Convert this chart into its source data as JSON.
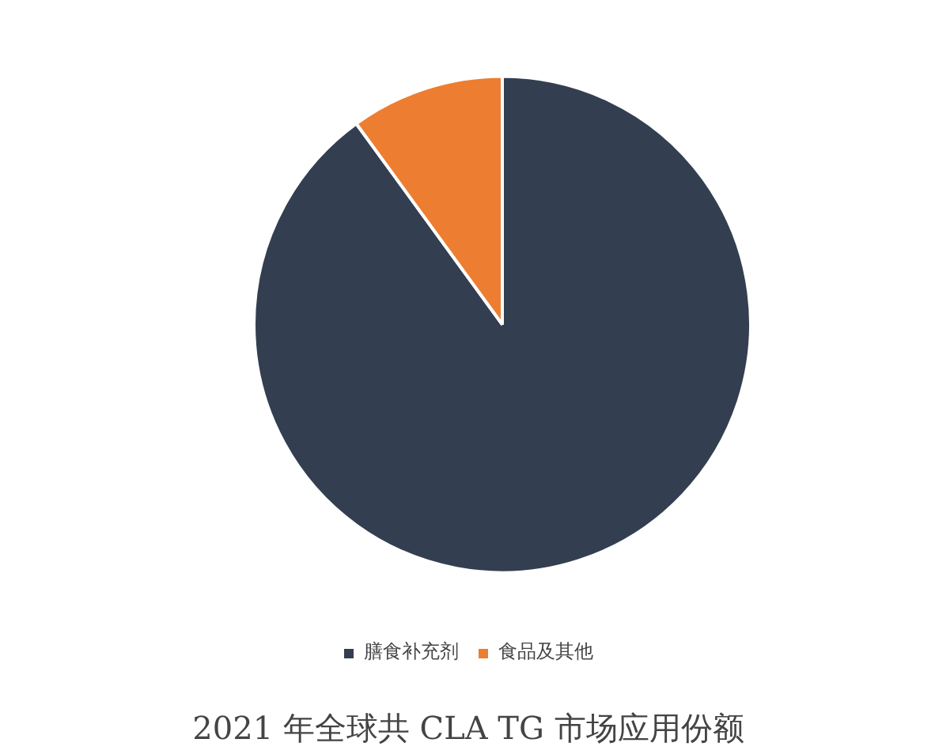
{
  "chart_data": {
    "type": "pie",
    "title": "2021 年全球共 CLA TG 市场应用份额",
    "categories": [
      "膳食补充剂",
      "食品及其他"
    ],
    "values": [
      90,
      10
    ],
    "colors": [
      "#333f50",
      "#ed7d31"
    ],
    "legend": "bottom"
  }
}
